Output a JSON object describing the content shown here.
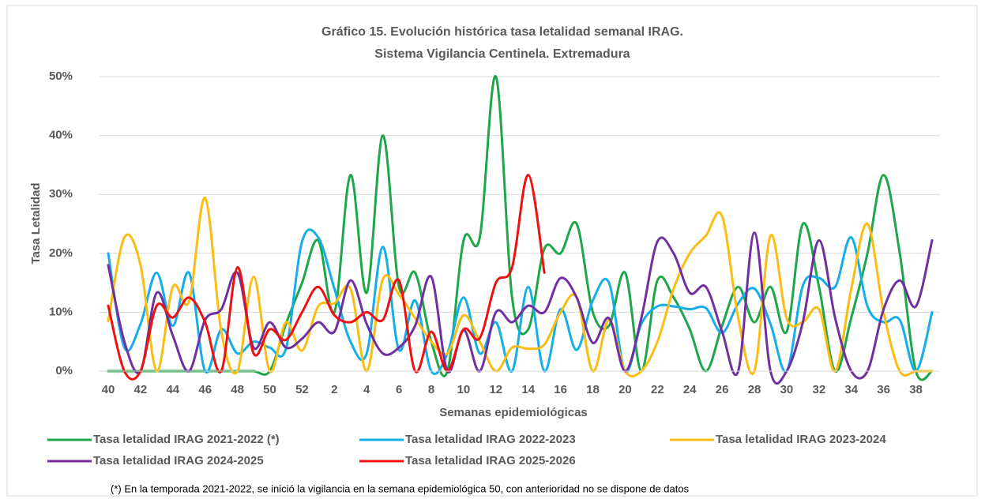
{
  "chart_data": {
    "type": "line",
    "title": "Gráfico 15. Evolución histórica tasa letalidad semanal IRAG.",
    "subtitle": "Sistema  Vigilancia Centinela. Extremadura",
    "y_label": "Tasa Letalidad",
    "x_label": "Semanas epidemiológicas",
    "note": "(*) En la temporada 2021-2022, se inició la vigilancia en la semana epidemiológica 50, con anterioridad no se dispone de datos",
    "categories": [
      40,
      null,
      42,
      null,
      44,
      null,
      46,
      null,
      48,
      null,
      50,
      null,
      52,
      null,
      2,
      null,
      4,
      null,
      6,
      null,
      8,
      null,
      10,
      null,
      12,
      null,
      14,
      null,
      16,
      null,
      18,
      null,
      20,
      null,
      22,
      null,
      24,
      null,
      26,
      null,
      28,
      null,
      30,
      null,
      32,
      null,
      34,
      null,
      36,
      null,
      38,
      null
    ],
    "ylim": [
      0,
      50
    ],
    "yticks": [
      {
        "value": 0,
        "label": "0%"
      },
      {
        "value": 10,
        "label": "10%"
      },
      {
        "value": 20,
        "label": "20%"
      },
      {
        "value": 30,
        "label": "30%"
      },
      {
        "value": 40,
        "label": "40%"
      },
      {
        "value": 50,
        "label": "50%"
      }
    ],
    "grid": true,
    "legend": "bottom",
    "series": [
      {
        "name": "Tasa letalidad IRAG 2021-2022 (*)",
        "color": "#1fa64a",
        "values": [
          0,
          0,
          0,
          0,
          0,
          0,
          0,
          0,
          0,
          0,
          0,
          8,
          15,
          22.2,
          10,
          33.3,
          13.3,
          40,
          14.3,
          16.7,
          5,
          0,
          22.2,
          22.7,
          50,
          12.5,
          7.1,
          20.8,
          20,
          25,
          10,
          7.7,
          16.7,
          0,
          15.4,
          12.5,
          7.1,
          0,
          7.7,
          14.3,
          8.3,
          14.3,
          6.7,
          25,
          14.3,
          0,
          9.1,
          20,
          33.3,
          20,
          0,
          0
        ]
      },
      {
        "name": "Tasa letalidad IRAG 2022-2023",
        "color": "#16aee8",
        "values": [
          20,
          4,
          8,
          16.7,
          7.7,
          16.7,
          0,
          7.1,
          3,
          5,
          4,
          3.8,
          22,
          22.7,
          14,
          5,
          3,
          21.1,
          3.6,
          12,
          0,
          3,
          12.5,
          3,
          8.3,
          0,
          14.3,
          0,
          10.5,
          3.6,
          12,
          15,
          0,
          8,
          11,
          11,
          10.5,
          10.7,
          6.5,
          11.5,
          14,
          8,
          0,
          14.5,
          15.8,
          14.3,
          22.7,
          11,
          8.3,
          8.7,
          0,
          10
        ]
      },
      {
        "name": "Tasa letalidad IRAG 2023-2024",
        "color": "#fbbd13",
        "values": [
          8.5,
          22.7,
          18,
          0,
          14.3,
          11.8,
          29.4,
          6.7,
          0,
          16,
          0,
          8.3,
          3.5,
          11,
          11.5,
          14,
          0,
          15.6,
          13,
          9,
          5,
          3,
          9.5,
          5,
          0,
          4,
          3.8,
          4.5,
          10,
          12.5,
          0,
          8.7,
          0,
          0,
          5,
          14,
          20,
          23,
          26.3,
          9,
          0,
          23,
          9,
          8.3,
          10.5,
          0,
          14,
          25,
          10,
          0,
          0,
          0
        ]
      },
      {
        "name": "Tasa letalidad IRAG 2024-2025",
        "color": "#7030a0",
        "values": [
          18,
          5,
          0,
          13.3,
          6,
          0,
          8.7,
          10.5,
          16.7,
          4,
          8.3,
          4,
          5.5,
          8.3,
          6.7,
          15.4,
          8,
          3,
          4,
          7.7,
          16,
          0,
          7,
          0,
          10,
          8.3,
          11.1,
          10,
          15.8,
          12.5,
          4.8,
          9,
          0,
          9,
          22,
          20,
          13.3,
          14.3,
          6.7,
          0,
          23.5,
          0,
          0,
          8.3,
          22.2,
          9,
          0,
          0,
          10.5,
          15.4,
          11,
          22.2
        ]
      },
      {
        "name": "Tasa letalidad IRAG 2025-2026",
        "color": "#ee1111",
        "values": [
          11.1,
          0,
          0,
          11.1,
          9.1,
          12.5,
          8.3,
          0,
          17.6,
          3,
          7.1,
          5.3,
          10,
          14.3,
          9.5,
          8.3,
          10,
          8.7,
          15.4,
          0,
          6.7,
          0,
          7.1,
          5.6,
          15,
          17.6,
          33.3,
          16.7,
          null,
          null,
          null,
          null,
          null,
          null,
          null,
          null,
          null,
          null,
          null,
          null,
          null,
          null,
          null,
          null,
          null,
          null,
          null,
          null,
          null,
          null,
          null,
          null
        ]
      }
    ]
  }
}
